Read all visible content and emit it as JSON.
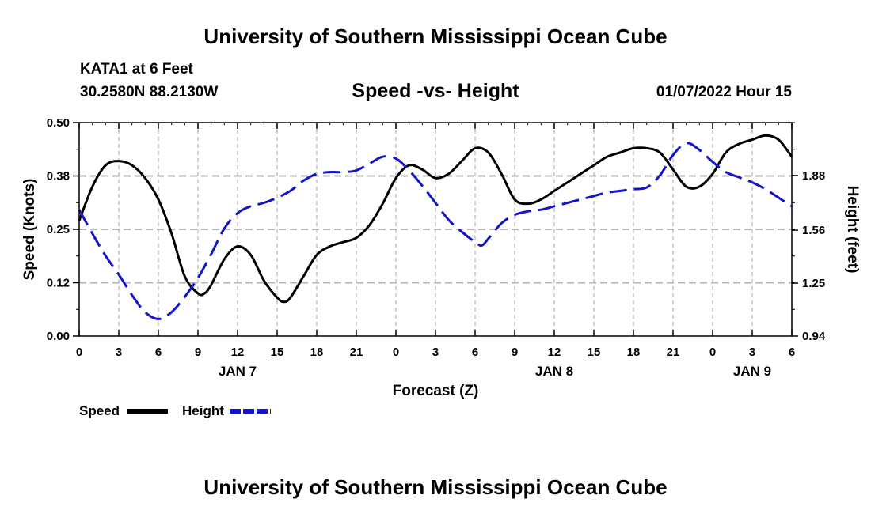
{
  "page_title": "University of Southern Mississippi Ocean Cube",
  "footer_title": "University of Southern Mississippi Ocean Cube",
  "station": "KATA1 at 6 Feet",
  "coords": "30.2580N  88.2130W",
  "timestamp": "01/07/2022 Hour 15",
  "colors": {
    "speed": "#000000",
    "height": "#1414c8",
    "grid": "#b4b4b4"
  },
  "chart_data": {
    "type": "line",
    "title": "Speed -vs- Height",
    "xlabel": "Forecast (Z)",
    "ylabel_left": "Speed (Knots)",
    "ylabel_right": "Height (feet)",
    "x_unit": "hours from 00Z Jan 7",
    "xlim": [
      0,
      54
    ],
    "ylim_left": [
      0,
      0.5
    ],
    "ylim_right": [
      0.94,
      2.19
    ],
    "x_ticks": [
      0,
      3,
      6,
      9,
      12,
      15,
      18,
      21,
      24,
      27,
      30,
      33,
      36,
      39,
      42,
      45,
      48,
      51,
      54
    ],
    "x_tick_labels": [
      "0",
      "3",
      "6",
      "9",
      "12",
      "15",
      "18",
      "21",
      "0",
      "3",
      "6",
      "9",
      "12",
      "15",
      "18",
      "21",
      "0",
      "3",
      "6"
    ],
    "left_ticks": [
      "0.00",
      "0.12",
      "0.25",
      "0.38",
      "0.50"
    ],
    "left_tick_values": [
      0,
      0.125,
      0.25,
      0.375,
      0.5
    ],
    "right_ticks": [
      "0.94",
      "1.25",
      "1.56",
      "1.88"
    ],
    "right_tick_values": [
      0.94,
      1.25,
      1.56,
      1.88
    ],
    "day_labels": [
      {
        "label": "JAN 7",
        "x": 12
      },
      {
        "label": "JAN 8",
        "x": 36
      },
      {
        "label": "JAN 9",
        "x": 51
      }
    ],
    "grid": true,
    "series": [
      {
        "name": "Speed",
        "axis": "left",
        "style": "solid",
        "x": [
          0,
          1,
          2,
          3,
          4,
          5,
          6,
          7,
          8,
          9,
          9.5,
          10,
          11,
          12,
          13,
          14,
          15,
          15.5,
          16,
          17,
          18,
          19,
          20,
          21,
          22,
          23,
          24,
          25,
          26,
          27,
          28,
          29,
          30,
          31,
          32,
          33,
          34,
          35,
          36,
          37,
          38,
          39,
          40,
          41,
          42,
          43,
          44,
          45,
          46,
          47,
          48,
          49,
          50,
          51,
          52,
          53,
          54
        ],
        "values": [
          0.27,
          0.35,
          0.4,
          0.41,
          0.4,
          0.37,
          0.32,
          0.24,
          0.14,
          0.1,
          0.1,
          0.12,
          0.18,
          0.21,
          0.19,
          0.13,
          0.09,
          0.08,
          0.09,
          0.14,
          0.19,
          0.21,
          0.22,
          0.23,
          0.26,
          0.31,
          0.37,
          0.4,
          0.39,
          0.37,
          0.38,
          0.41,
          0.44,
          0.43,
          0.38,
          0.32,
          0.31,
          0.32,
          0.34,
          0.36,
          0.38,
          0.4,
          0.42,
          0.43,
          0.44,
          0.44,
          0.43,
          0.39,
          0.35,
          0.35,
          0.38,
          0.43,
          0.45,
          0.46,
          0.47,
          0.46,
          0.42
        ]
      },
      {
        "name": "Height",
        "axis": "right",
        "style": "dashed",
        "x": [
          0,
          1,
          2,
          3,
          4,
          5,
          6,
          7,
          8,
          9,
          10,
          11,
          12,
          13,
          14,
          15,
          16,
          17,
          18,
          19,
          20,
          21,
          22,
          23,
          24,
          25,
          26,
          27,
          28,
          29,
          30,
          30.5,
          31,
          32,
          33,
          34,
          35,
          36,
          37,
          38,
          39,
          40,
          41,
          42,
          43,
          44,
          45,
          46,
          47,
          48,
          49,
          50,
          51,
          52,
          53,
          54
        ],
        "values": [
          1.68,
          1.54,
          1.41,
          1.3,
          1.18,
          1.08,
          1.04,
          1.08,
          1.17,
          1.28,
          1.42,
          1.57,
          1.66,
          1.7,
          1.72,
          1.75,
          1.79,
          1.85,
          1.89,
          1.9,
          1.9,
          1.91,
          1.95,
          1.99,
          1.98,
          1.91,
          1.82,
          1.72,
          1.62,
          1.55,
          1.49,
          1.47,
          1.51,
          1.6,
          1.65,
          1.67,
          1.68,
          1.7,
          1.72,
          1.74,
          1.76,
          1.78,
          1.79,
          1.8,
          1.81,
          1.88,
          2.0,
          2.07,
          2.03,
          1.96,
          1.9,
          1.87,
          1.84,
          1.8,
          1.75,
          1.7
        ]
      }
    ],
    "legend": [
      {
        "label": "Speed",
        "style": "solid"
      },
      {
        "label": "Height",
        "style": "dashed"
      }
    ],
    "legend_position": "bottom-left"
  }
}
